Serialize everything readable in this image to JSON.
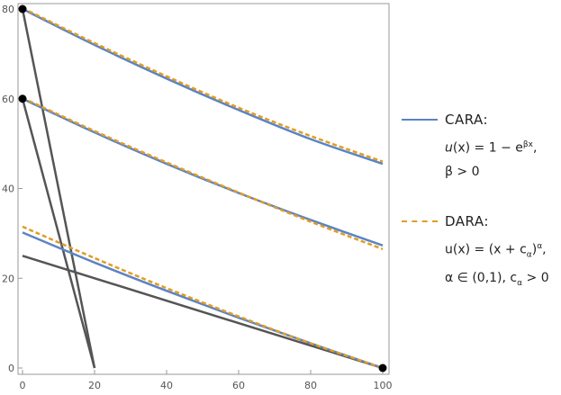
{
  "chart_data": {
    "type": "line",
    "title": "",
    "xlabel": "",
    "ylabel": "",
    "xlim": [
      0,
      100
    ],
    "ylim": [
      0,
      80
    ],
    "x_ticks": [
      0,
      20,
      40,
      60,
      80,
      100
    ],
    "y_ticks": [
      0,
      20,
      40,
      60,
      80
    ],
    "grid": false,
    "legend_position": "right",
    "series": [
      {
        "name": "CARA",
        "style": "solid",
        "color": "#5b84c4",
        "x": [
          0,
          20,
          40,
          60,
          80,
          100
        ],
        "y": [
          80,
          72,
          64.5,
          57.5,
          51,
          45.5
        ]
      },
      {
        "name": "DARA",
        "style": "dashed",
        "color": "#e19c24",
        "x": [
          0,
          20,
          40,
          60,
          80,
          100
        ],
        "y": [
          80.2,
          72.4,
          65,
          58,
          51.7,
          46
        ]
      },
      {
        "name": "CARA",
        "style": "solid",
        "color": "#5b84c4",
        "x": [
          0,
          20,
          40,
          60,
          80,
          100
        ],
        "y": [
          60,
          52.5,
          45.5,
          39,
          33,
          27.3
        ]
      },
      {
        "name": "DARA",
        "style": "dashed",
        "color": "#e19c24",
        "x": [
          0,
          20,
          40,
          60,
          80,
          100
        ],
        "y": [
          60.2,
          52.8,
          45.8,
          39.1,
          32.6,
          26.5
        ]
      },
      {
        "name": "CARA",
        "style": "solid",
        "color": "#5b84c4",
        "x": [
          0,
          20,
          40,
          60,
          80,
          100
        ],
        "y": [
          30.2,
          23.5,
          17.2,
          11.2,
          5.5,
          0
        ]
      },
      {
        "name": "DARA",
        "style": "dashed",
        "color": "#e19c24",
        "x": [
          0,
          20,
          40,
          60,
          80,
          100
        ],
        "y": [
          31.5,
          24.5,
          17.8,
          11.5,
          5.5,
          0
        ]
      }
    ],
    "black_lines": [
      {
        "x": [
          0,
          20
        ],
        "y": [
          80,
          0
        ]
      },
      {
        "x": [
          0,
          20
        ],
        "y": [
          60,
          0
        ]
      },
      {
        "x": [
          0,
          100
        ],
        "y": [
          25,
          0
        ]
      }
    ],
    "points": [
      {
        "x": 0,
        "y": 80
      },
      {
        "x": 0,
        "y": 60
      },
      {
        "x": 100,
        "y": 0
      }
    ]
  },
  "legend": {
    "cara": {
      "label": "CARA:",
      "color": "#5b84c4",
      "formula1_prefix": "u",
      "formula1_mid": "(x) = 1 − e",
      "formula1_sup": "βx",
      "formula1_suffix": ",",
      "formula2": "β > 0"
    },
    "dara": {
      "label": "DARA:",
      "color": "#e19c24",
      "formula1_a": "u(x) = (x + c",
      "formula1_sub": "α",
      "formula1_b": ")",
      "formula1_sup": "α",
      "formula1_suffix": ",",
      "formula2_a": "α ∈ (0,1), c",
      "formula2_sub": "α",
      "formula2_b": " > 0"
    }
  }
}
